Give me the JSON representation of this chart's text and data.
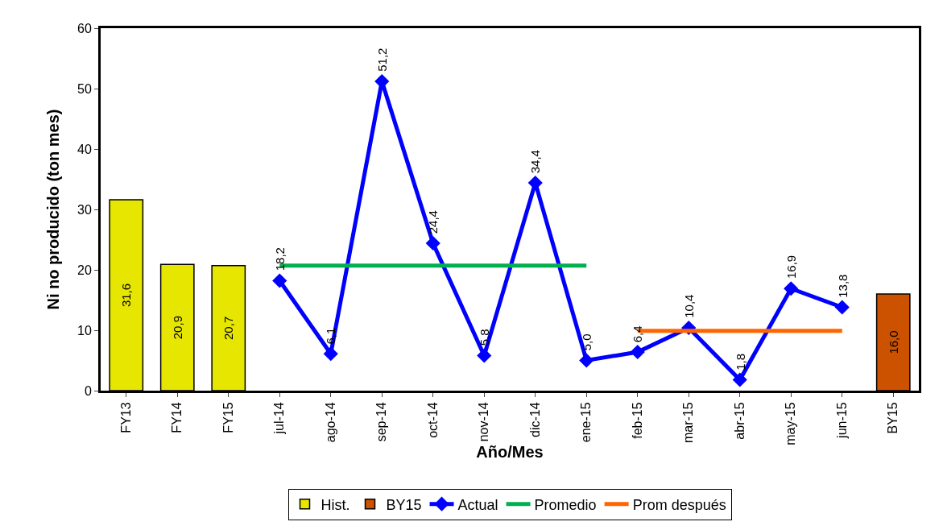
{
  "chart_data": {
    "type": "bar",
    "xlabel": "Año/Mes",
    "ylabel": "Ni no producido (ton mes)",
    "categories": [
      "FY13",
      "FY14",
      "FY15",
      "jul-14",
      "ago-14",
      "sep-14",
      "oct-14",
      "nov-14",
      "dic-14",
      "ene-15",
      "feb-15",
      "mar-15",
      "abr-15",
      "may-15",
      "jun-15",
      "BY15"
    ],
    "series": [
      {
        "name": "Hist.",
        "color": "#e6e600",
        "values": [
          31.6,
          20.9,
          20.7,
          null,
          null,
          null,
          null,
          null,
          null,
          null,
          null,
          null,
          null,
          null,
          null,
          null
        ],
        "value_labels": [
          "31,6",
          "20,9",
          "20,7",
          null,
          null,
          null,
          null,
          null,
          null,
          null,
          null,
          null,
          null,
          null,
          null,
          null
        ]
      },
      {
        "name": "BY15",
        "color": "#cc5200",
        "values": [
          null,
          null,
          null,
          null,
          null,
          null,
          null,
          null,
          null,
          null,
          null,
          null,
          null,
          null,
          null,
          16.0
        ],
        "value_labels": [
          null,
          null,
          null,
          null,
          null,
          null,
          null,
          null,
          null,
          null,
          null,
          null,
          null,
          null,
          null,
          "16,0"
        ]
      },
      {
        "name": "Actual",
        "type": "line",
        "color": "#0000ff",
        "marker": "diamond",
        "line_style": "solid",
        "values": [
          null,
          null,
          null,
          18.2,
          6.1,
          51.2,
          24.4,
          5.8,
          34.4,
          5.0,
          6.4,
          10.4,
          1.8,
          16.9,
          13.8,
          null
        ],
        "value_labels": [
          null,
          null,
          null,
          "18,2",
          "6,1",
          "51,2",
          "24,4",
          "5,8",
          "34,4",
          "5,0",
          "6,4",
          "10,4",
          "1,8",
          "16,9",
          "13,8",
          null
        ]
      },
      {
        "name": "Promedio",
        "type": "line",
        "color": "#00b050",
        "marker": "none",
        "line_style": "solid",
        "values": [
          null,
          null,
          null,
          20.7,
          20.7,
          20.7,
          20.7,
          20.7,
          20.7,
          20.7,
          null,
          null,
          null,
          null,
          null,
          null
        ]
      },
      {
        "name": "Prom después",
        "type": "line",
        "color": "#ff6600",
        "marker": "none",
        "line_style": "solid",
        "values": [
          null,
          null,
          null,
          null,
          null,
          null,
          null,
          null,
          null,
          null,
          9.9,
          9.9,
          9.9,
          9.9,
          9.9,
          null
        ]
      }
    ],
    "ylim": [
      0,
      60
    ],
    "yticks": [
      0,
      10,
      20,
      30,
      40,
      50,
      60
    ],
    "grid": false,
    "legend": "bottom"
  }
}
